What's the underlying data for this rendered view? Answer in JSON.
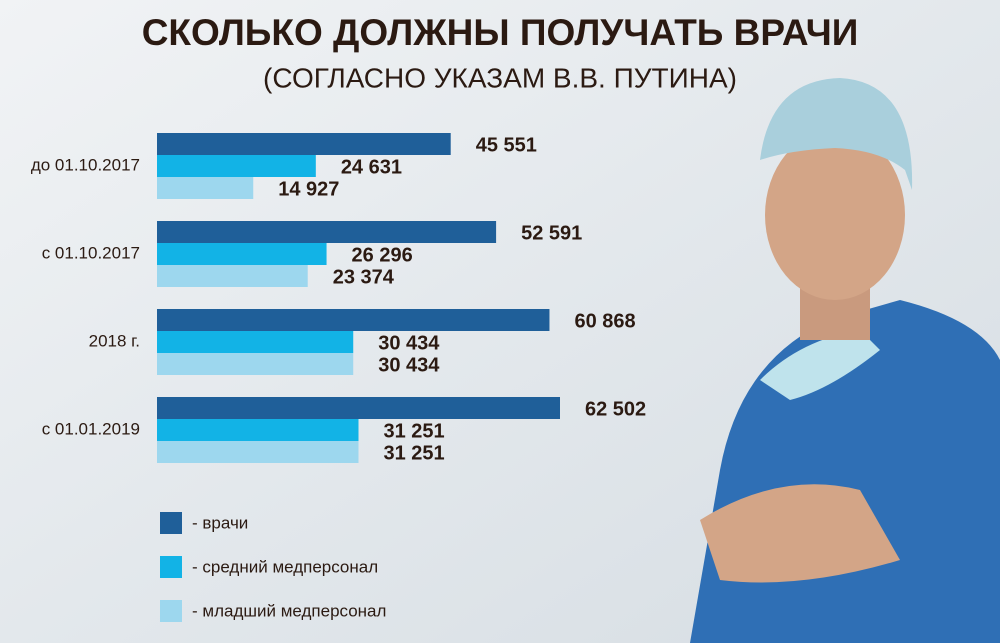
{
  "chart_data": {
    "type": "hbar",
    "title": "СКОЛЬКО ДОЛЖНЫ ПОЛУЧАТЬ ВРАЧИ",
    "subtitle": "(СОГЛАСНО УКАЗАМ В.В. ПУТИНА)",
    "categories": [
      "до 01.10.2017",
      "с 01.10.2017",
      "2018 г.",
      "с 01.01.2019"
    ],
    "series": [
      {
        "name": "- врачи",
        "color": "#1f5f99",
        "values": [
          45551,
          52591,
          60868,
          62502
        ],
        "value_labels": [
          "45 551",
          "52 591",
          "60 868",
          "62 502"
        ]
      },
      {
        "name": "- средний медперсонал",
        "color": "#12b3e6",
        "values": [
          24631,
          26296,
          30434,
          31251
        ],
        "value_labels": [
          "24 631",
          "26 296",
          "30 434",
          "31 251"
        ]
      },
      {
        "name": "- младший медперсонал",
        "color": "#9dd7ee",
        "values": [
          14927,
          23374,
          30434,
          31251
        ],
        "value_labels": [
          "14 927",
          "23 374",
          "30 434",
          "31 251"
        ]
      }
    ]
  }
}
